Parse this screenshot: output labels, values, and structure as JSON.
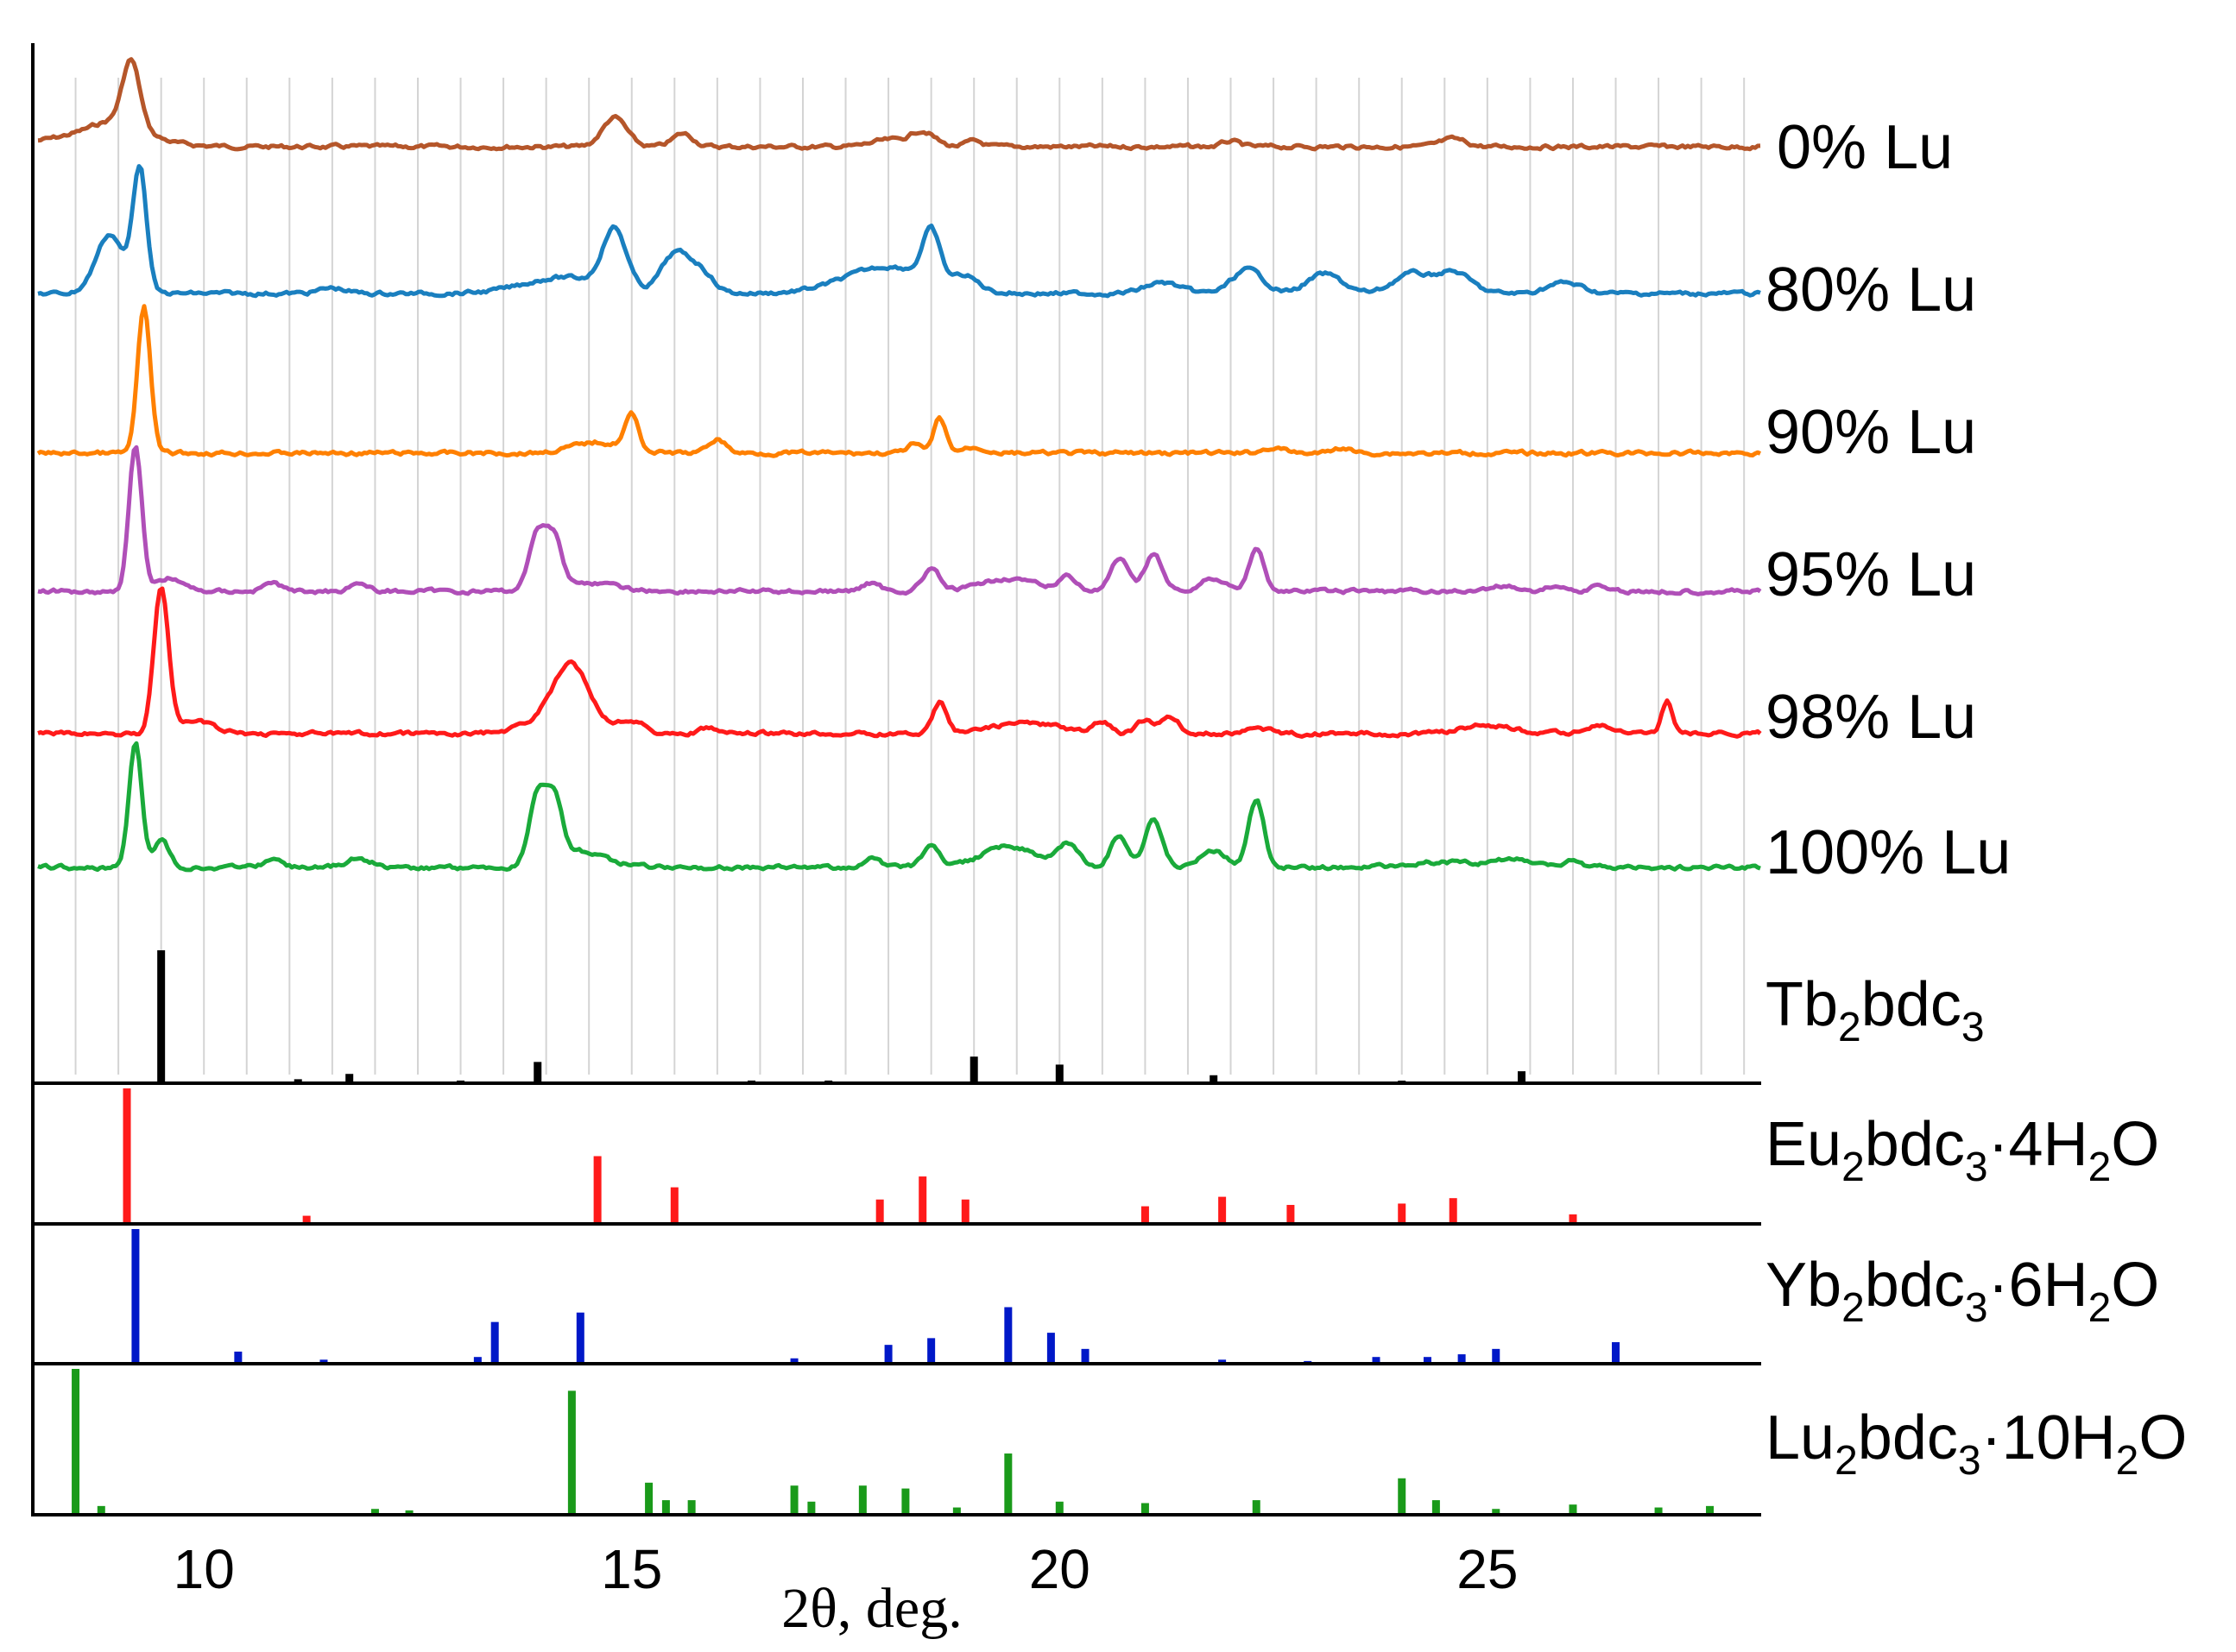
{
  "chart_data": {
    "type": "line",
    "xlabel": "2θ, deg.",
    "xlim": [
      8,
      28.2
    ],
    "x_ticks": [
      10,
      15,
      20,
      25
    ],
    "vertical_gridlines_step": 0.5,
    "series": [
      {
        "name": "0% Lu",
        "color": "#b5562a",
        "baseline": 0.0,
        "peaks": [
          [
            8.7,
            0.1,
            0.6
          ],
          [
            9.15,
            0.6,
            0.1
          ],
          [
            9.0,
            0.15,
            0.3
          ],
          [
            14.8,
            0.27,
            0.14
          ],
          [
            15.6,
            0.12,
            0.12
          ],
          [
            18.0,
            0.06,
            0.2
          ],
          [
            18.4,
            0.14,
            0.14
          ],
          [
            19.0,
            0.05,
            0.1
          ],
          [
            22.0,
            0.05,
            0.1
          ],
          [
            24.6,
            0.07,
            0.15
          ]
        ],
        "label_parts": [
          {
            "text": "0% Lu"
          }
        ]
      },
      {
        "name": "80% Lu",
        "color": "#1a7fbf",
        "baseline": 0.0,
        "peaks": [
          [
            8.9,
            0.55,
            0.16
          ],
          [
            9.25,
            1.15,
            0.08
          ],
          [
            11.5,
            0.05,
            0.15
          ],
          [
            14.2,
            0.15,
            0.45
          ],
          [
            14.8,
            0.55,
            0.14
          ],
          [
            15.5,
            0.35,
            0.16
          ],
          [
            15.8,
            0.2,
            0.15
          ],
          [
            18.0,
            0.25,
            0.5
          ],
          [
            18.5,
            0.45,
            0.1
          ],
          [
            18.9,
            0.12,
            0.15
          ],
          [
            21.2,
            0.1,
            0.2
          ],
          [
            22.2,
            0.22,
            0.18
          ],
          [
            23.1,
            0.18,
            0.2
          ],
          [
            24.1,
            0.18,
            0.2
          ],
          [
            24.6,
            0.2,
            0.2
          ],
          [
            25.9,
            0.1,
            0.2
          ]
        ],
        "label_parts": [
          {
            "text": "80% Lu"
          }
        ]
      },
      {
        "name": "90% Lu",
        "color": "#ff8000",
        "baseline": 0.0,
        "peaks": [
          [
            9.3,
            1.35,
            0.075
          ],
          [
            14.6,
            0.1,
            0.3
          ],
          [
            15.0,
            0.32,
            0.08
          ],
          [
            16.0,
            0.13,
            0.1
          ],
          [
            18.3,
            0.08,
            0.08
          ],
          [
            18.6,
            0.32,
            0.07
          ],
          [
            19.0,
            0.05,
            0.15
          ],
          [
            22.5,
            0.05,
            0.12
          ],
          [
            23.3,
            0.05,
            0.1
          ]
        ],
        "label_parts": [
          {
            "text": "90% Lu"
          }
        ]
      },
      {
        "name": "95% Lu",
        "color": "#b04fb8",
        "baseline": 0.0,
        "peaks": [
          [
            9.2,
            1.35,
            0.075
          ],
          [
            9.6,
            0.12,
            0.15
          ],
          [
            10.8,
            0.08,
            0.1
          ],
          [
            11.8,
            0.08,
            0.1
          ],
          [
            13.9,
            0.55,
            0.1
          ],
          [
            14.1,
            0.45,
            0.09
          ],
          [
            14.5,
            0.08,
            0.3
          ],
          [
            17.8,
            0.08,
            0.1
          ],
          [
            18.5,
            0.2,
            0.1
          ],
          [
            19.4,
            0.12,
            0.3
          ],
          [
            20.1,
            0.14,
            0.1
          ],
          [
            20.7,
            0.3,
            0.1
          ],
          [
            21.1,
            0.35,
            0.1
          ],
          [
            21.8,
            0.12,
            0.15
          ],
          [
            22.3,
            0.38,
            0.09
          ],
          [
            25.2,
            0.05,
            0.15
          ],
          [
            25.8,
            0.05,
            0.1
          ],
          [
            26.3,
            0.05,
            0.1
          ]
        ],
        "label_parts": [
          {
            "text": "95% Lu"
          }
        ]
      },
      {
        "name": "98% Lu",
        "color": "#ff1a1a",
        "baseline": 0.0,
        "peaks": [
          [
            9.5,
            1.35,
            0.085
          ],
          [
            9.9,
            0.12,
            0.2
          ],
          [
            14.3,
            0.45,
            0.2
          ],
          [
            14.2,
            0.2,
            0.35
          ],
          [
            15.0,
            0.12,
            0.14
          ],
          [
            15.9,
            0.05,
            0.1
          ],
          [
            18.6,
            0.28,
            0.08
          ],
          [
            19.6,
            0.1,
            0.4
          ],
          [
            20.5,
            0.1,
            0.1
          ],
          [
            21.0,
            0.12,
            0.1
          ],
          [
            21.3,
            0.15,
            0.1
          ],
          [
            22.3,
            0.05,
            0.15
          ],
          [
            25.0,
            0.08,
            0.3
          ],
          [
            26.3,
            0.08,
            0.15
          ],
          [
            27.1,
            0.3,
            0.06
          ]
        ],
        "label_parts": [
          {
            "text": "98% Lu"
          }
        ]
      },
      {
        "name": "100% Lu",
        "color": "#1aaa3a",
        "baseline": 0.0,
        "peaks": [
          [
            9.2,
            1.15,
            0.075
          ],
          [
            9.5,
            0.25,
            0.09
          ],
          [
            10.8,
            0.08,
            0.1
          ],
          [
            11.8,
            0.08,
            0.15
          ],
          [
            13.9,
            0.65,
            0.1
          ],
          [
            14.1,
            0.55,
            0.09
          ],
          [
            14.4,
            0.15,
            0.3
          ],
          [
            17.8,
            0.08,
            0.1
          ],
          [
            18.5,
            0.18,
            0.1
          ],
          [
            19.4,
            0.2,
            0.3
          ],
          [
            20.1,
            0.22,
            0.12
          ],
          [
            20.7,
            0.3,
            0.1
          ],
          [
            21.1,
            0.45,
            0.1
          ],
          [
            21.8,
            0.15,
            0.15
          ],
          [
            22.3,
            0.62,
            0.09
          ],
          [
            24.5,
            0.05,
            0.4
          ],
          [
            25.3,
            0.08,
            0.2
          ],
          [
            26.0,
            0.06,
            0.1
          ]
        ],
        "label_parts": [
          {
            "text": "100% Lu"
          }
        ]
      }
    ],
    "reference_patterns": [
      {
        "name": "Tb2bdc3",
        "color": "#000000",
        "label_parts": [
          {
            "text": "Tb"
          },
          {
            "text": "2",
            "sub": true
          },
          {
            "text": "bdc"
          },
          {
            "text": "3",
            "sub": true
          }
        ],
        "lines": [
          [
            9.5,
            100
          ],
          [
            11.1,
            3
          ],
          [
            11.7,
            7
          ],
          [
            13.0,
            2
          ],
          [
            13.9,
            16
          ],
          [
            16.4,
            2
          ],
          [
            17.3,
            2
          ],
          [
            19.0,
            20
          ],
          [
            20.0,
            14
          ],
          [
            21.8,
            6
          ],
          [
            24.0,
            1
          ],
          [
            25.4,
            9
          ]
        ]
      },
      {
        "name": "Eu2bdc3·4H2O",
        "color": "#ff1a1a",
        "label_parts": [
          {
            "text": "Eu"
          },
          {
            "text": "2",
            "sub": true
          },
          {
            "text": "bdc"
          },
          {
            "text": "3",
            "sub": true
          },
          {
            "text": "·4H"
          },
          {
            "text": "2",
            "sub": true
          },
          {
            "text": "O"
          }
        ],
        "lines": [
          [
            9.1,
            100
          ],
          [
            11.2,
            6
          ],
          [
            14.6,
            50
          ],
          [
            15.5,
            27
          ],
          [
            17.9,
            18
          ],
          [
            18.4,
            35
          ],
          [
            18.9,
            18
          ],
          [
            21.0,
            13
          ],
          [
            21.9,
            20
          ],
          [
            22.7,
            14
          ],
          [
            24.0,
            15
          ],
          [
            24.6,
            19
          ],
          [
            26.0,
            7
          ]
        ]
      },
      {
        "name": "Yb2bdc3·6H2O",
        "color": "#0018c8",
        "label_parts": [
          {
            "text": "Yb"
          },
          {
            "text": "2",
            "sub": true
          },
          {
            "text": "bdc"
          },
          {
            "text": "3",
            "sub": true
          },
          {
            "text": "·6H"
          },
          {
            "text": "2",
            "sub": true
          },
          {
            "text": "O"
          }
        ],
        "lines": [
          [
            9.2,
            100
          ],
          [
            10.4,
            9
          ],
          [
            11.4,
            3
          ],
          [
            13.2,
            5
          ],
          [
            13.4,
            31
          ],
          [
            14.4,
            38
          ],
          [
            16.9,
            4
          ],
          [
            18.0,
            14
          ],
          [
            18.5,
            19
          ],
          [
            19.4,
            42
          ],
          [
            19.9,
            23
          ],
          [
            20.3,
            11
          ],
          [
            21.9,
            3
          ],
          [
            22.9,
            2
          ],
          [
            23.7,
            5
          ],
          [
            24.3,
            5
          ],
          [
            24.7,
            7
          ],
          [
            25.1,
            11
          ],
          [
            26.5,
            16
          ]
        ]
      },
      {
        "name": "Lu2bdc3·10H2O",
        "color": "#1a9a1a",
        "label_parts": [
          {
            "text": "Lu"
          },
          {
            "text": "2",
            "sub": true
          },
          {
            "text": "bdc"
          },
          {
            "text": "3",
            "sub": true
          },
          {
            "text": "·10H"
          },
          {
            "text": "2",
            "sub": true
          },
          {
            "text": "O"
          }
        ],
        "lines": [
          [
            8.5,
            100
          ],
          [
            8.8,
            6
          ],
          [
            12.0,
            4
          ],
          [
            12.4,
            3
          ],
          [
            14.3,
            85
          ],
          [
            15.2,
            22
          ],
          [
            15.4,
            10
          ],
          [
            15.7,
            10
          ],
          [
            16.9,
            20
          ],
          [
            17.1,
            9
          ],
          [
            17.7,
            20
          ],
          [
            18.2,
            18
          ],
          [
            18.8,
            5
          ],
          [
            19.4,
            42
          ],
          [
            20.0,
            9
          ],
          [
            21.0,
            8
          ],
          [
            22.3,
            10
          ],
          [
            24.0,
            25
          ],
          [
            24.4,
            10
          ],
          [
            25.1,
            4
          ],
          [
            26.0,
            7
          ],
          [
            27.0,
            5
          ],
          [
            27.6,
            6
          ]
        ]
      }
    ]
  }
}
